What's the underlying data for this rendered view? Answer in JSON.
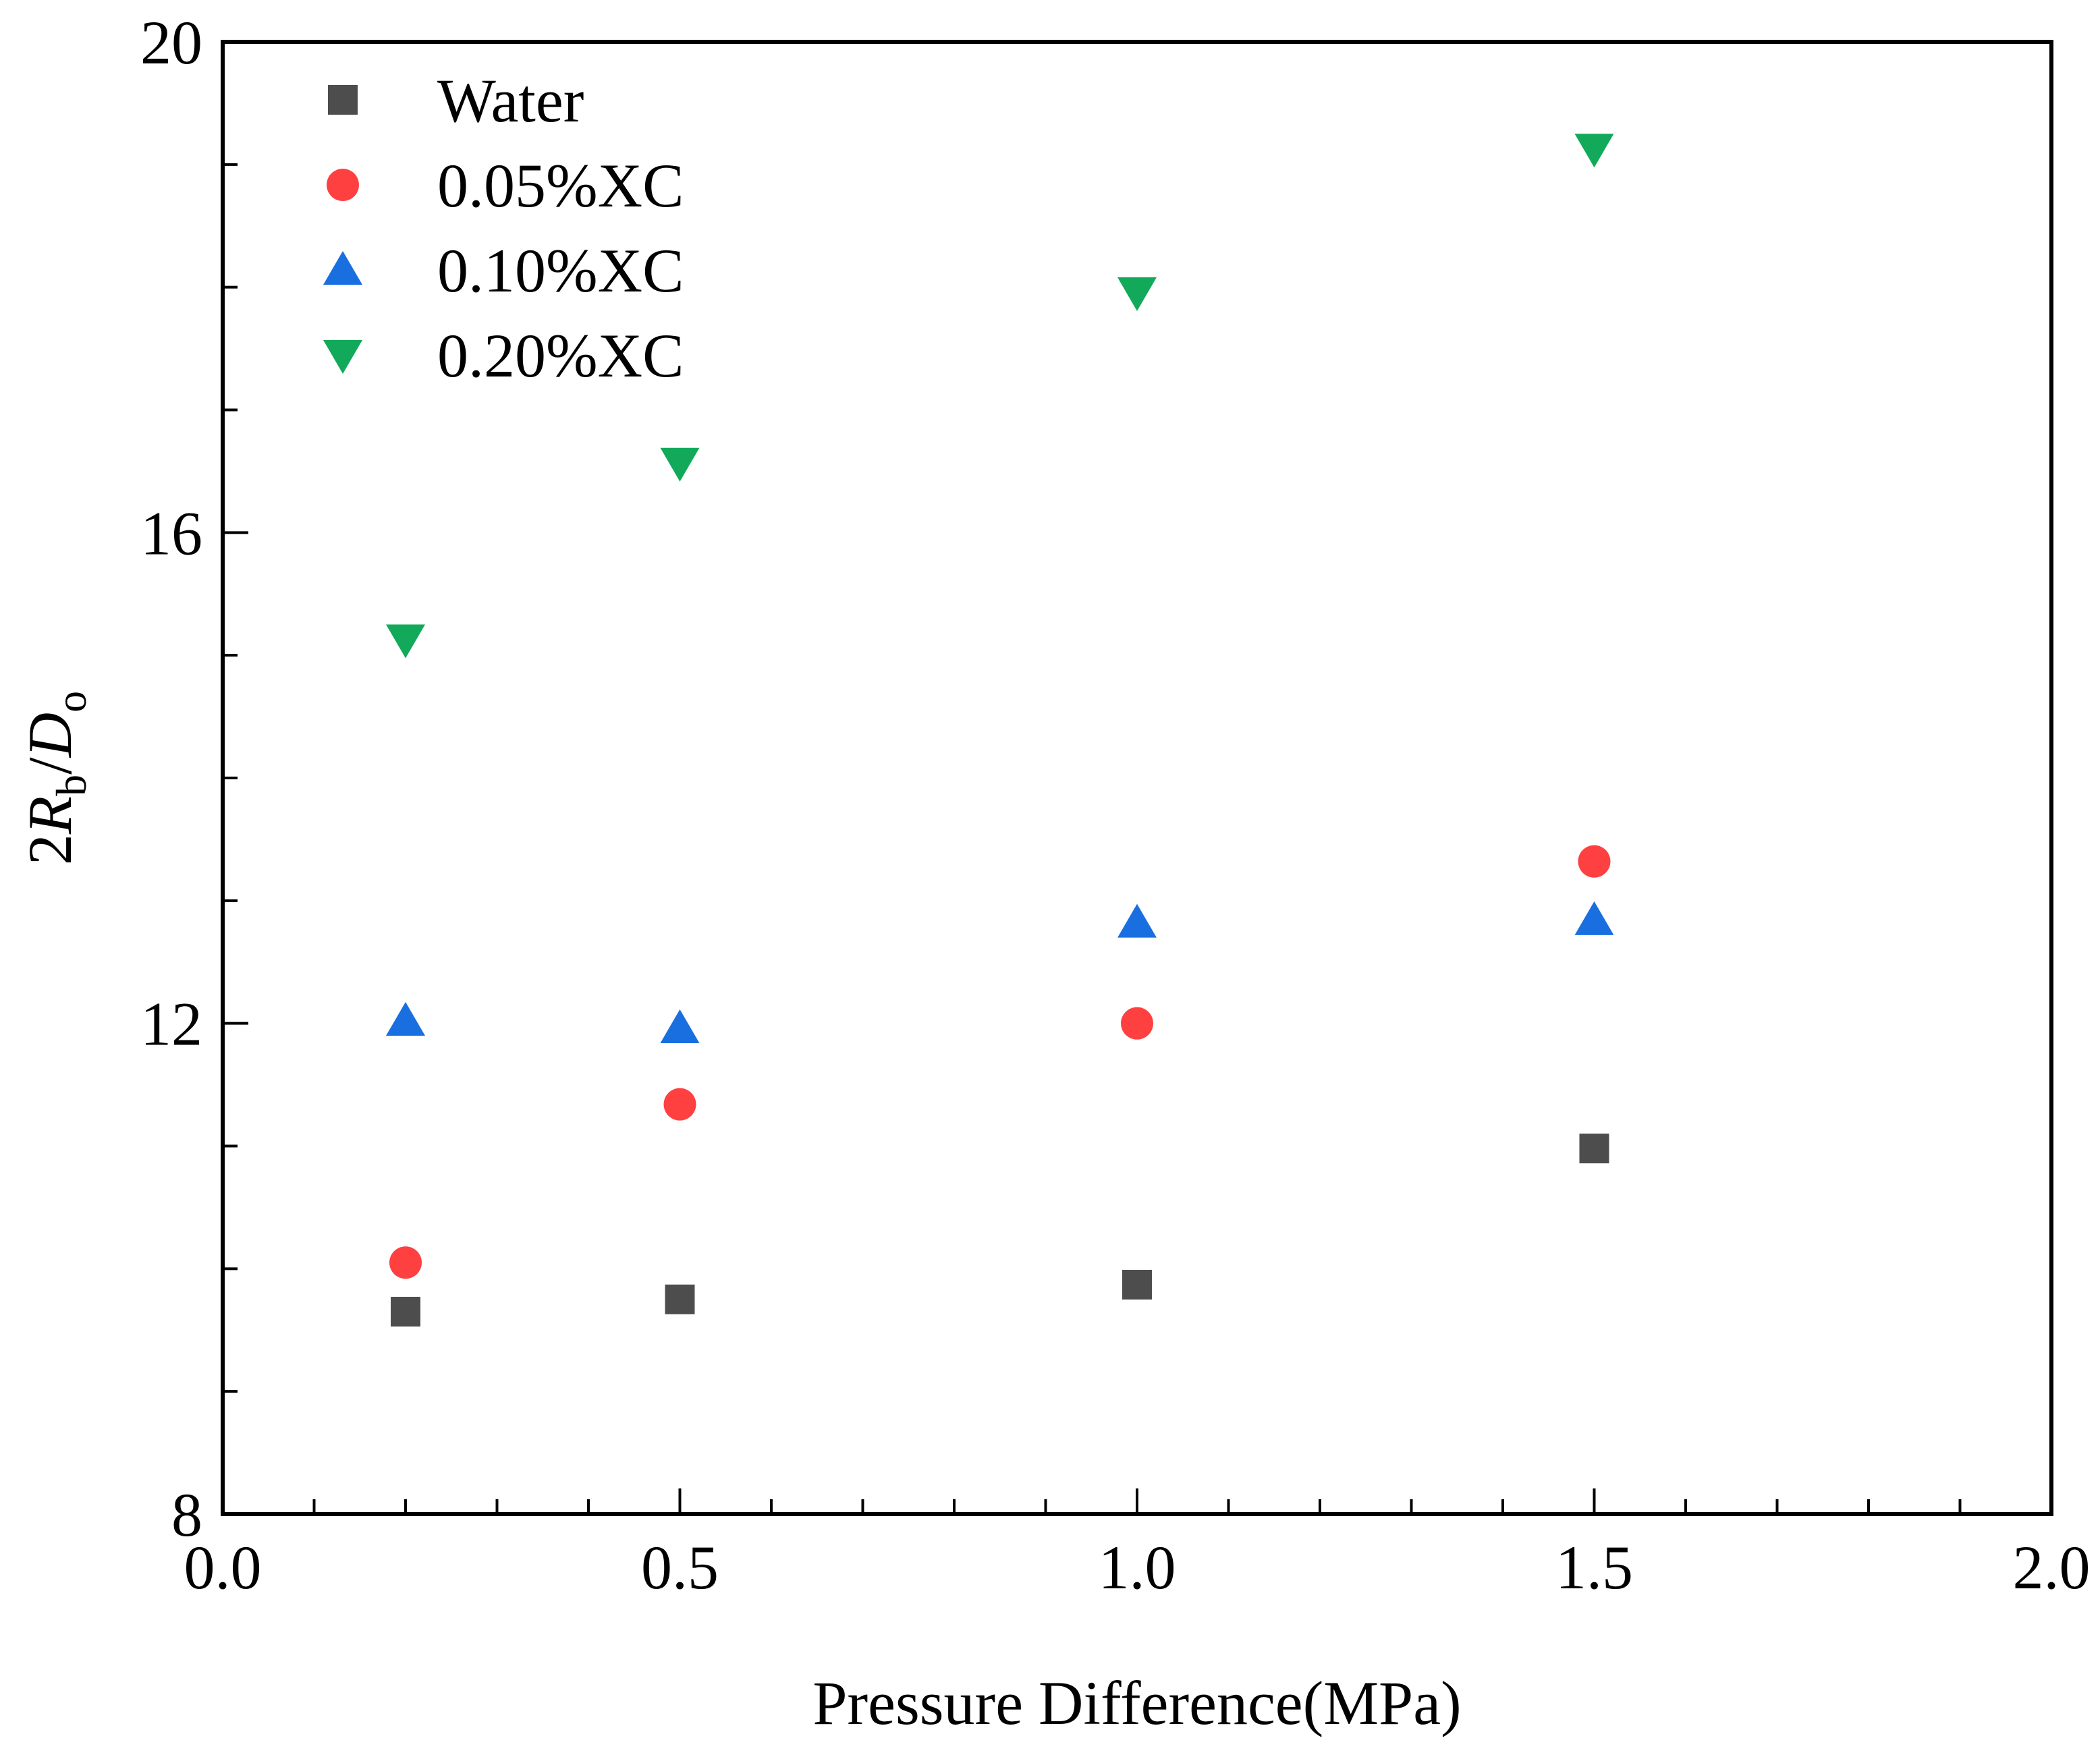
{
  "chart_data": {
    "type": "scatter",
    "title": "",
    "xlabel": "Pressure Difference(MPa)",
    "ylabel": {
      "main": "2",
      "r": "R",
      "r_sub": "b",
      "slash": "/",
      "d": "D",
      "d_sub": "o"
    },
    "xlim": [
      0.0,
      2.0
    ],
    "ylim": [
      8,
      20
    ],
    "x_ticks": [
      0.0,
      0.5,
      1.0,
      1.5,
      2.0
    ],
    "x_tick_labels": [
      "0.0",
      "0.5",
      "1.0",
      "1.5",
      "2.0"
    ],
    "y_ticks": [
      8,
      12,
      16,
      20
    ],
    "y_tick_labels": [
      "8",
      "12",
      "16",
      "20"
    ],
    "x_minor_step": 0.1,
    "y_minor_step": 1,
    "grid": false,
    "legend_position": "top-left",
    "series": [
      {
        "name": "Water",
        "marker": "square",
        "color": "#4d4d4d",
        "x": [
          0.2,
          0.5,
          1.0,
          1.5
        ],
        "y": [
          9.65,
          9.75,
          9.87,
          10.98
        ]
      },
      {
        "name": "0.05%XC",
        "marker": "circle",
        "color": "#ff4040",
        "x": [
          0.2,
          0.5,
          1.0,
          1.5
        ],
        "y": [
          10.05,
          11.34,
          12.0,
          13.32
        ]
      },
      {
        "name": "0.10%XC",
        "marker": "triangle-up",
        "color": "#1a6fe0",
        "x": [
          0.2,
          0.5,
          1.0,
          1.5
        ],
        "y": [
          12.02,
          11.96,
          12.82,
          12.84
        ]
      },
      {
        "name": "0.20%XC",
        "marker": "triangle-down",
        "color": "#12aa5a",
        "x": [
          0.2,
          0.5,
          1.0,
          1.5
        ],
        "y": [
          15.13,
          16.57,
          17.96,
          19.13
        ]
      }
    ]
  }
}
